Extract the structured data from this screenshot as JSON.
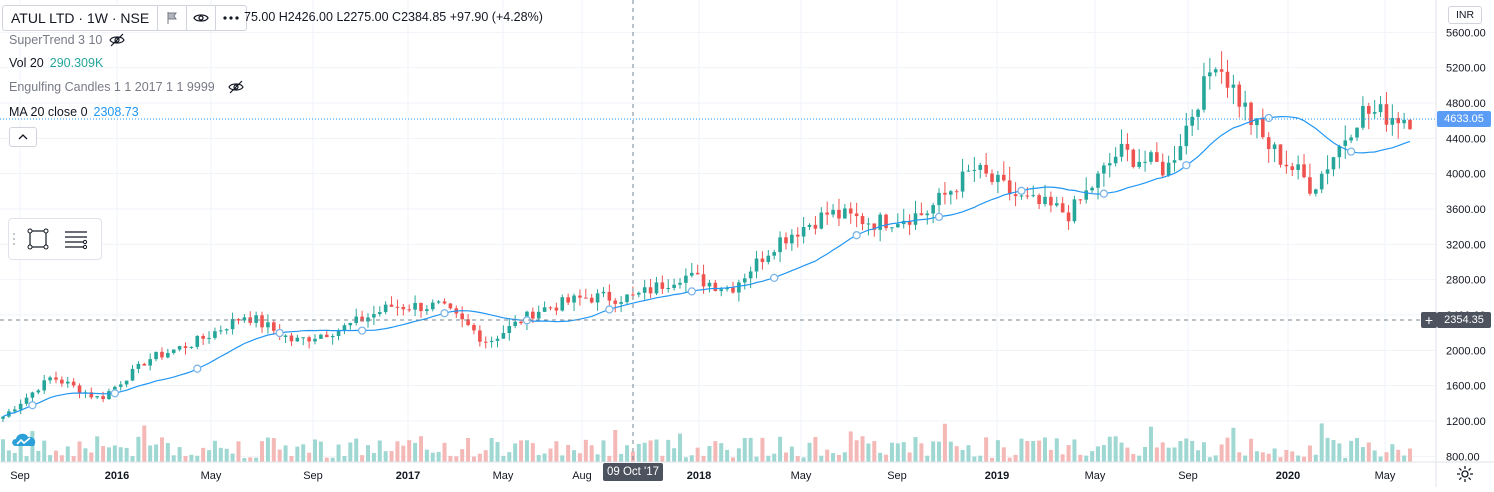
{
  "header": {
    "symbol_label": "ATUL LTD · 1W · NSE",
    "ohlc_text": "75.00  H2426.00  L2275.00  C2384.85  +97.90 (+4.28%)",
    "buttons": [
      "flag-icon",
      "eye-icon",
      "more-icon"
    ]
  },
  "legend": {
    "supertrend": {
      "label": "SuperTrend 3 10"
    },
    "volume": {
      "label": "Vol 20",
      "value": "290.309K"
    },
    "engulfing": {
      "label": "Engulfing Candles 1 1 2017 1 1 9999"
    },
    "ma": {
      "label": "MA 20 close 0",
      "value": "2308.73"
    }
  },
  "price_axis": {
    "currency": "INR",
    "last_price": "4633.05",
    "crosshair_price": "2354.35"
  },
  "time_axis": {
    "crosshair_date": "09 Oct '17"
  },
  "colors": {
    "up": "#26a69a",
    "down": "#ef5350",
    "ma": "#2196f3",
    "vol_up": "#9fd8d2",
    "vol_down": "#f4b8b6",
    "grid": "#f0f3fa"
  },
  "chart_data": {
    "type": "line",
    "y_ticks": [
      "5600.00",
      "5200.00",
      "4800.00",
      "4400.00",
      "4000.00",
      "3600.00",
      "3200.00",
      "2800.00",
      "2400.00",
      "2000.00",
      "1600.00",
      "1200.00",
      "800.00"
    ],
    "x_ticks": [
      "Sep",
      "2016",
      "May",
      "Sep",
      "2017",
      "May",
      "Aug",
      "2018",
      "May",
      "Sep",
      "2019",
      "May",
      "Sep",
      "2020",
      "May"
    ],
    "ylim": [
      800,
      5800
    ],
    "grid": true,
    "series": [
      {
        "x": [
          "Sep 2015",
          "Dec 2015",
          "Mar 2016",
          "Jun 2016",
          "Aug 2016",
          "Oct 2016",
          "Dec 2016",
          "Mar 2017",
          "May 2017",
          "Jul 2017",
          "Sep 2017",
          "Nov 2017",
          "Jan 2018",
          "Mar 2018",
          "May 2018",
          "Jul 2018",
          "Sep 2018",
          "Nov 2018",
          "Jan 2019",
          "Mar 2019",
          "May 2019",
          "Jul 2019",
          "Sep 2019",
          "Nov 2019",
          "Jan 2020",
          "Feb 2020",
          "Mar 2020",
          "Apr 2020",
          "May 2020",
          "Jun 2020"
        ],
        "values": [
          1250,
          1700,
          1450,
          1900,
          2100,
          2400,
          2100,
          2250,
          2500,
          2500,
          2100,
          2450,
          2600,
          2600,
          2850,
          2700,
          3250,
          3550,
          3450,
          3550,
          4050,
          3700,
          3550,
          4250,
          4050,
          5300,
          4350,
          3850,
          4700,
          4633
        ]
      }
    ],
    "annotations": [
      "Oct 2017: 2354.35"
    ]
  }
}
